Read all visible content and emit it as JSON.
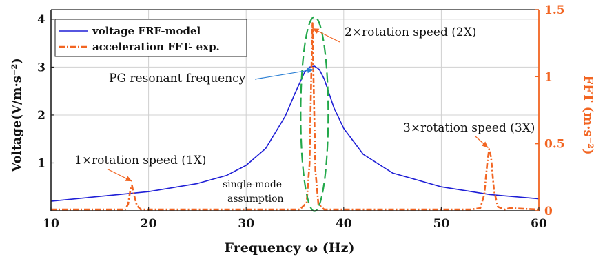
{
  "chart_data": {
    "type": "line",
    "xlabel": "Frequency ω (Hz)",
    "ylabel_left": "Voltage(V/m·s⁻²)",
    "ylabel_right": "FFT (m·s⁻²)",
    "xlim": [
      10,
      60
    ],
    "ylim_left": [
      0,
      4.2
    ],
    "ylim_right": [
      0,
      1.5
    ],
    "x_ticks": [
      10,
      20,
      30,
      40,
      50,
      60
    ],
    "x_tick_labels": [
      "10",
      "20",
      "30",
      "40",
      "50",
      "60"
    ],
    "y_left_ticks": [
      1,
      2,
      3,
      4
    ],
    "y_left_tick_labels": [
      "1",
      "2",
      "3",
      "4"
    ],
    "y_right_ticks": [
      0,
      0.5,
      1,
      1.5
    ],
    "y_right_tick_labels": [
      "0",
      "0.5",
      "1",
      "1.5"
    ],
    "grid": true,
    "legend_position": "top-left",
    "series": [
      {
        "name": "voltage FRF-model",
        "axis": "left",
        "color": "#1f1fd6",
        "style": "solid",
        "x": [
          10,
          15,
          20,
          25,
          28,
          30,
          32,
          34,
          35,
          36,
          36.5,
          37,
          37.5,
          38,
          39,
          40,
          42,
          45,
          50,
          55,
          60
        ],
        "y": [
          0.2,
          0.3,
          0.4,
          0.57,
          0.74,
          0.95,
          1.3,
          1.97,
          2.45,
          2.9,
          3.0,
          3.02,
          2.95,
          2.75,
          2.15,
          1.72,
          1.18,
          0.79,
          0.5,
          0.34,
          0.25
        ]
      },
      {
        "name": "acceleration FFT- exp.",
        "axis": "right",
        "color": "#f26522",
        "style": "dashdot",
        "x": [
          10,
          17.6,
          17.9,
          18.1,
          18.3,
          18.5,
          18.8,
          19.2,
          25,
          35.5,
          36.2,
          36.5,
          36.7,
          36.8,
          36.9,
          37.1,
          37.4,
          38,
          45,
          53,
          54,
          54.4,
          54.7,
          54.9,
          55.1,
          55.4,
          55.8,
          56.5,
          57,
          60
        ],
        "y": [
          0.01,
          0.01,
          0.05,
          0.14,
          0.19,
          0.12,
          0.04,
          0.01,
          0.01,
          0.01,
          0.06,
          0.35,
          1.1,
          1.4,
          1.0,
          0.3,
          0.05,
          0.01,
          0.01,
          0.01,
          0.02,
          0.12,
          0.35,
          0.46,
          0.4,
          0.15,
          0.03,
          0.01,
          0.02,
          0.01
        ]
      }
    ],
    "annotations": [
      {
        "text": "1×rotation speed (1X)",
        "arrow_to": [
          18.3,
          0.22
        ]
      },
      {
        "text": "2×rotation speed (2X)",
        "arrow_to": [
          36.8,
          1.36
        ]
      },
      {
        "text": "PG resonant frequency",
        "arrow_to": [
          36.9,
          2.95
        ]
      },
      {
        "text": "3×rotation speed (3X)",
        "arrow_to": [
          54.8,
          0.47
        ]
      },
      {
        "text_lines": [
          "single-mode",
          "assumption"
        ]
      }
    ],
    "highlight_ellipse": {
      "center_x": 37.0,
      "center_y_left": 2.02,
      "color": "#22a84a"
    }
  }
}
